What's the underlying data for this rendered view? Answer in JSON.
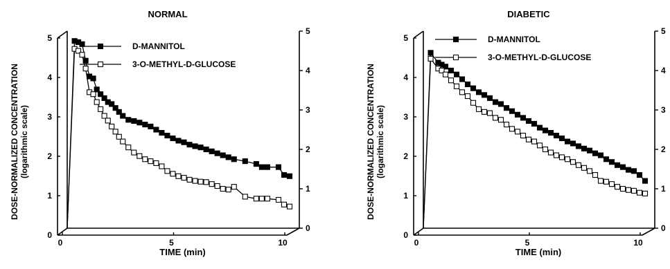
{
  "chart_data": [
    {
      "type": "line",
      "title": "NORMAL",
      "xlabel": "TIME (min)",
      "ylabel": "DOSE-NORMALIZED  CONCENTRATION",
      "ylabel_sub": "(logarithmic scale)",
      "xlim": [
        0,
        10
      ],
      "ylim": [
        0,
        5
      ],
      "x_ticks": [
        "0",
        "5",
        "10"
      ],
      "y_ticks_left": [
        "0",
        "1",
        "2",
        "3",
        "4",
        "5"
      ],
      "y_ticks_right": [
        "0",
        "1",
        "2",
        "3",
        "4",
        "5"
      ],
      "grid": false,
      "legend_position": "top-right",
      "series": [
        {
          "name": "D-MANNITOL",
          "marker": "filled-square",
          "x": [
            0.0,
            0.33,
            0.5,
            0.67,
            0.83,
            1.0,
            1.17,
            1.33,
            1.5,
            1.67,
            1.83,
            2.0,
            2.17,
            2.33,
            2.5,
            2.75,
            3.0,
            3.25,
            3.5,
            3.75,
            4.0,
            4.25,
            4.5,
            4.75,
            5.0,
            5.25,
            5.5,
            5.75,
            6.0,
            6.25,
            6.5,
            6.75,
            7.0,
            7.25,
            7.5,
            8.0,
            8.5,
            8.75,
            9.0,
            9.5,
            9.75,
            10.0
          ],
          "y": [
            0.0,
            4.75,
            4.72,
            4.67,
            4.25,
            3.85,
            3.8,
            3.52,
            3.4,
            3.3,
            3.2,
            3.15,
            3.05,
            2.95,
            2.85,
            2.75,
            2.72,
            2.68,
            2.63,
            2.58,
            2.5,
            2.42,
            2.35,
            2.28,
            2.22,
            2.18,
            2.12,
            2.08,
            2.05,
            2.0,
            1.95,
            1.9,
            1.85,
            1.8,
            1.75,
            1.7,
            1.63,
            1.55,
            1.55,
            1.55,
            1.35,
            1.32
          ]
        },
        {
          "name": "3-O-METHYL-D-GLUCOSE",
          "marker": "open-square",
          "x": [
            0.0,
            0.33,
            0.5,
            0.67,
            0.83,
            1.0,
            1.17,
            1.33,
            1.5,
            1.67,
            1.83,
            2.0,
            2.17,
            2.33,
            2.5,
            2.75,
            3.0,
            3.25,
            3.5,
            3.75,
            4.0,
            4.25,
            4.5,
            4.75,
            5.0,
            5.25,
            5.5,
            5.75,
            6.0,
            6.25,
            6.5,
            6.75,
            7.0,
            7.25,
            7.5,
            8.0,
            8.5,
            8.75,
            9.0,
            9.5,
            9.75,
            10.0
          ],
          "y": [
            0.0,
            4.55,
            4.5,
            4.4,
            4.05,
            3.45,
            3.4,
            3.2,
            3.02,
            2.85,
            2.73,
            2.58,
            2.45,
            2.32,
            2.2,
            2.05,
            1.92,
            1.83,
            1.75,
            1.7,
            1.65,
            1.57,
            1.45,
            1.38,
            1.32,
            1.28,
            1.23,
            1.2,
            1.18,
            1.17,
            1.12,
            1.07,
            1.0,
            0.98,
            1.05,
            0.8,
            0.75,
            0.75,
            0.75,
            0.72,
            0.6,
            0.55
          ]
        }
      ]
    },
    {
      "type": "line",
      "title": "DIABETIC",
      "xlabel": "TIME (min)",
      "ylabel": "DOSE-NORMALIZED  CONCENTRATION",
      "ylabel_sub": "(logarithmic scale)",
      "xlim": [
        0,
        10
      ],
      "ylim": [
        0,
        5
      ],
      "x_ticks": [
        "0",
        "5",
        "10"
      ],
      "y_ticks_left": [
        "0",
        "1",
        "2",
        "3",
        "4",
        "5"
      ],
      "y_ticks_right": [
        "0",
        "1",
        "2",
        "3",
        "4",
        "5"
      ],
      "grid": false,
      "legend_position": "top-right",
      "series": [
        {
          "name": "D-MANNITOL",
          "marker": "filled-square",
          "x": [
            0.0,
            0.33,
            0.67,
            0.83,
            1.0,
            1.25,
            1.5,
            1.75,
            2.0,
            2.25,
            2.5,
            2.75,
            3.0,
            3.25,
            3.5,
            3.75,
            4.0,
            4.25,
            4.5,
            4.75,
            5.0,
            5.25,
            5.5,
            5.75,
            6.0,
            6.25,
            6.5,
            6.75,
            7.0,
            7.25,
            7.5,
            7.75,
            8.0,
            8.25,
            8.5,
            8.75,
            9.0,
            9.25,
            9.5,
            9.75,
            10.0
          ],
          "y": [
            0.0,
            4.45,
            4.2,
            4.15,
            4.1,
            4.0,
            3.9,
            3.78,
            3.65,
            3.55,
            3.45,
            3.38,
            3.3,
            3.2,
            3.15,
            3.05,
            2.97,
            2.88,
            2.8,
            2.72,
            2.65,
            2.55,
            2.48,
            2.42,
            2.35,
            2.28,
            2.2,
            2.15,
            2.08,
            2.02,
            1.97,
            1.9,
            1.85,
            1.75,
            1.68,
            1.6,
            1.55,
            1.48,
            1.45,
            1.35,
            1.2
          ]
        },
        {
          "name": "3-O-METHYL-D-GLUCOSE",
          "marker": "open-square",
          "x": [
            0.0,
            0.33,
            0.67,
            0.83,
            1.0,
            1.25,
            1.5,
            1.75,
            2.0,
            2.25,
            2.5,
            2.75,
            3.0,
            3.25,
            3.5,
            3.75,
            4.0,
            4.25,
            4.5,
            4.75,
            5.0,
            5.25,
            5.5,
            5.75,
            6.0,
            6.25,
            6.5,
            6.75,
            7.0,
            7.25,
            7.5,
            7.75,
            8.0,
            8.25,
            8.5,
            8.75,
            9.0,
            9.25,
            9.5,
            9.75,
            10.0
          ],
          "y": [
            0.0,
            4.3,
            4.05,
            4.0,
            3.9,
            3.75,
            3.6,
            3.45,
            3.35,
            3.18,
            3.02,
            2.95,
            2.92,
            2.8,
            2.75,
            2.63,
            2.52,
            2.45,
            2.35,
            2.25,
            2.2,
            2.1,
            2.0,
            1.92,
            1.85,
            1.8,
            1.75,
            1.68,
            1.6,
            1.53,
            1.45,
            1.35,
            1.2,
            1.18,
            1.12,
            1.05,
            1.0,
            0.97,
            0.95,
            0.9,
            0.88
          ]
        }
      ]
    }
  ]
}
